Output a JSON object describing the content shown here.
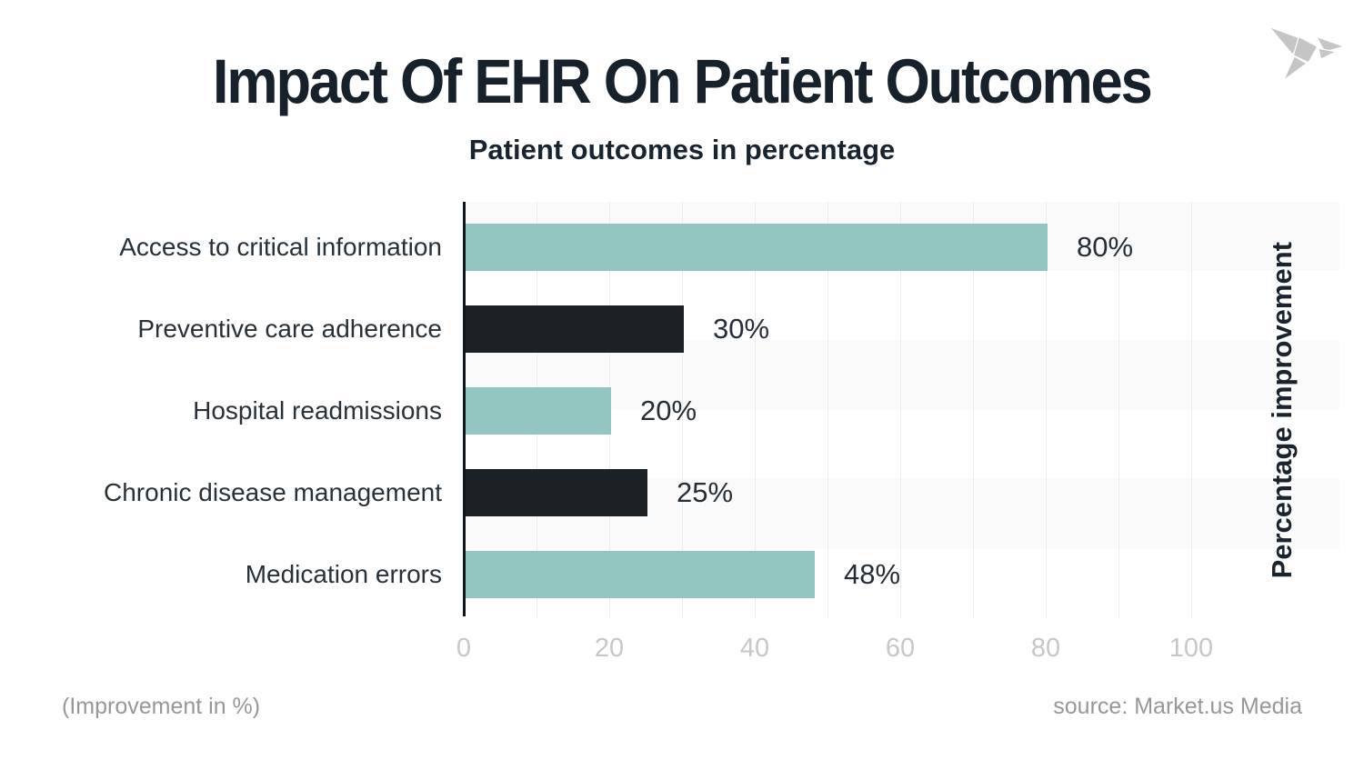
{
  "header": {
    "title": "Impact Of EHR On Patient Outcomes",
    "subtitle": "Patient outcomes in percentage"
  },
  "chart_data": {
    "type": "bar",
    "orientation": "horizontal",
    "title": "Impact Of EHR On Patient Outcomes",
    "subtitle": "Patient outcomes in percentage",
    "categories": [
      "Access to critical information",
      "Preventive care adherence",
      "Hospital readmissions",
      "Chronic disease management",
      "Medication errors"
    ],
    "values": [
      80,
      30,
      20,
      25,
      48
    ],
    "value_labels": [
      "80%",
      "30%",
      "20%",
      "25%",
      "48%"
    ],
    "bar_color_pattern": [
      "teal",
      "dark",
      "teal",
      "dark",
      "teal"
    ],
    "xlim": [
      0,
      100
    ],
    "xticks": [
      "0",
      "20",
      "40",
      "60",
      "80",
      "100"
    ],
    "ylabel_right": "Percentage improvement",
    "grid": {
      "vertical_minor_interval": 10,
      "horizontal_stripes": 6,
      "legend": "none"
    }
  },
  "footer": {
    "note": "(Improvement in %)",
    "source": "source: Market.us Media"
  },
  "colors": {
    "bar_teal": "#94c6c1",
    "bar_dark": "#1b2125",
    "axis_line": "#0e161b",
    "gridline": "#ececec",
    "stripe": "#fafafa",
    "tick_gray": "#c7c7c7",
    "footer_gray": "#979797",
    "value_text": "#242e38",
    "category_text": "#27313a",
    "logo_gray": "#c5c5c5"
  },
  "logo": {
    "name": "origami-bird-logo"
  }
}
